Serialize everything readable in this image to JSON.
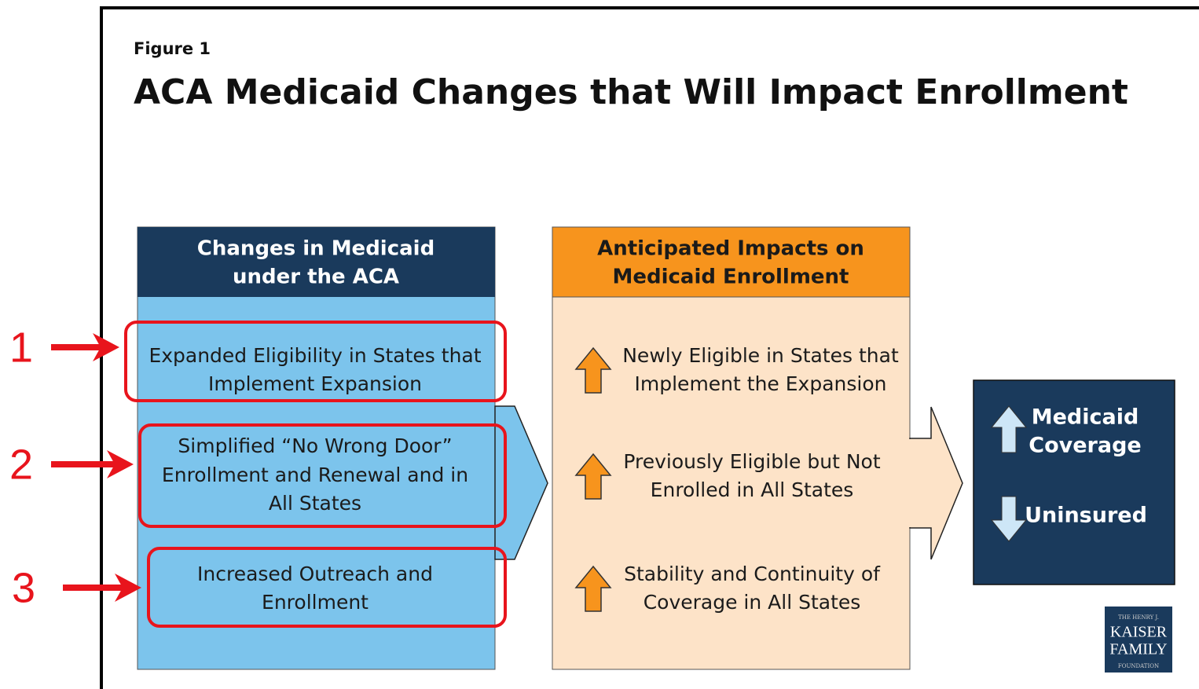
{
  "figure_label": "Figure 1",
  "title": "ACA Medicaid Changes that Will Impact Enrollment",
  "left_column": {
    "header": [
      "Changes in Medicaid",
      "under the ACA"
    ],
    "items": [
      [
        "Expanded Eligibility in States that",
        "Implement Expansion"
      ],
      [
        "Simplified “No Wrong Door”",
        "Enrollment and Renewal and in",
        "All States"
      ],
      [
        "Increased Outreach and",
        "Enrollment"
      ]
    ]
  },
  "middle_column": {
    "header": [
      "Anticipated Impacts on",
      "Medicaid Enrollment"
    ],
    "items": [
      [
        "Newly Eligible in States that",
        "Implement the Expansion"
      ],
      [
        "Previously Eligible but Not",
        "Enrolled in All States"
      ],
      [
        "Stability and Continuity of",
        "Coverage in All States"
      ]
    ]
  },
  "result": {
    "up": [
      "Medicaid",
      "Coverage"
    ],
    "down": "Uninsured"
  },
  "logo": [
    "THE HENRY J.",
    "KAISER",
    "FAMILY",
    "FOUNDATION"
  ],
  "annotations": [
    "1",
    "2",
    "3"
  ]
}
